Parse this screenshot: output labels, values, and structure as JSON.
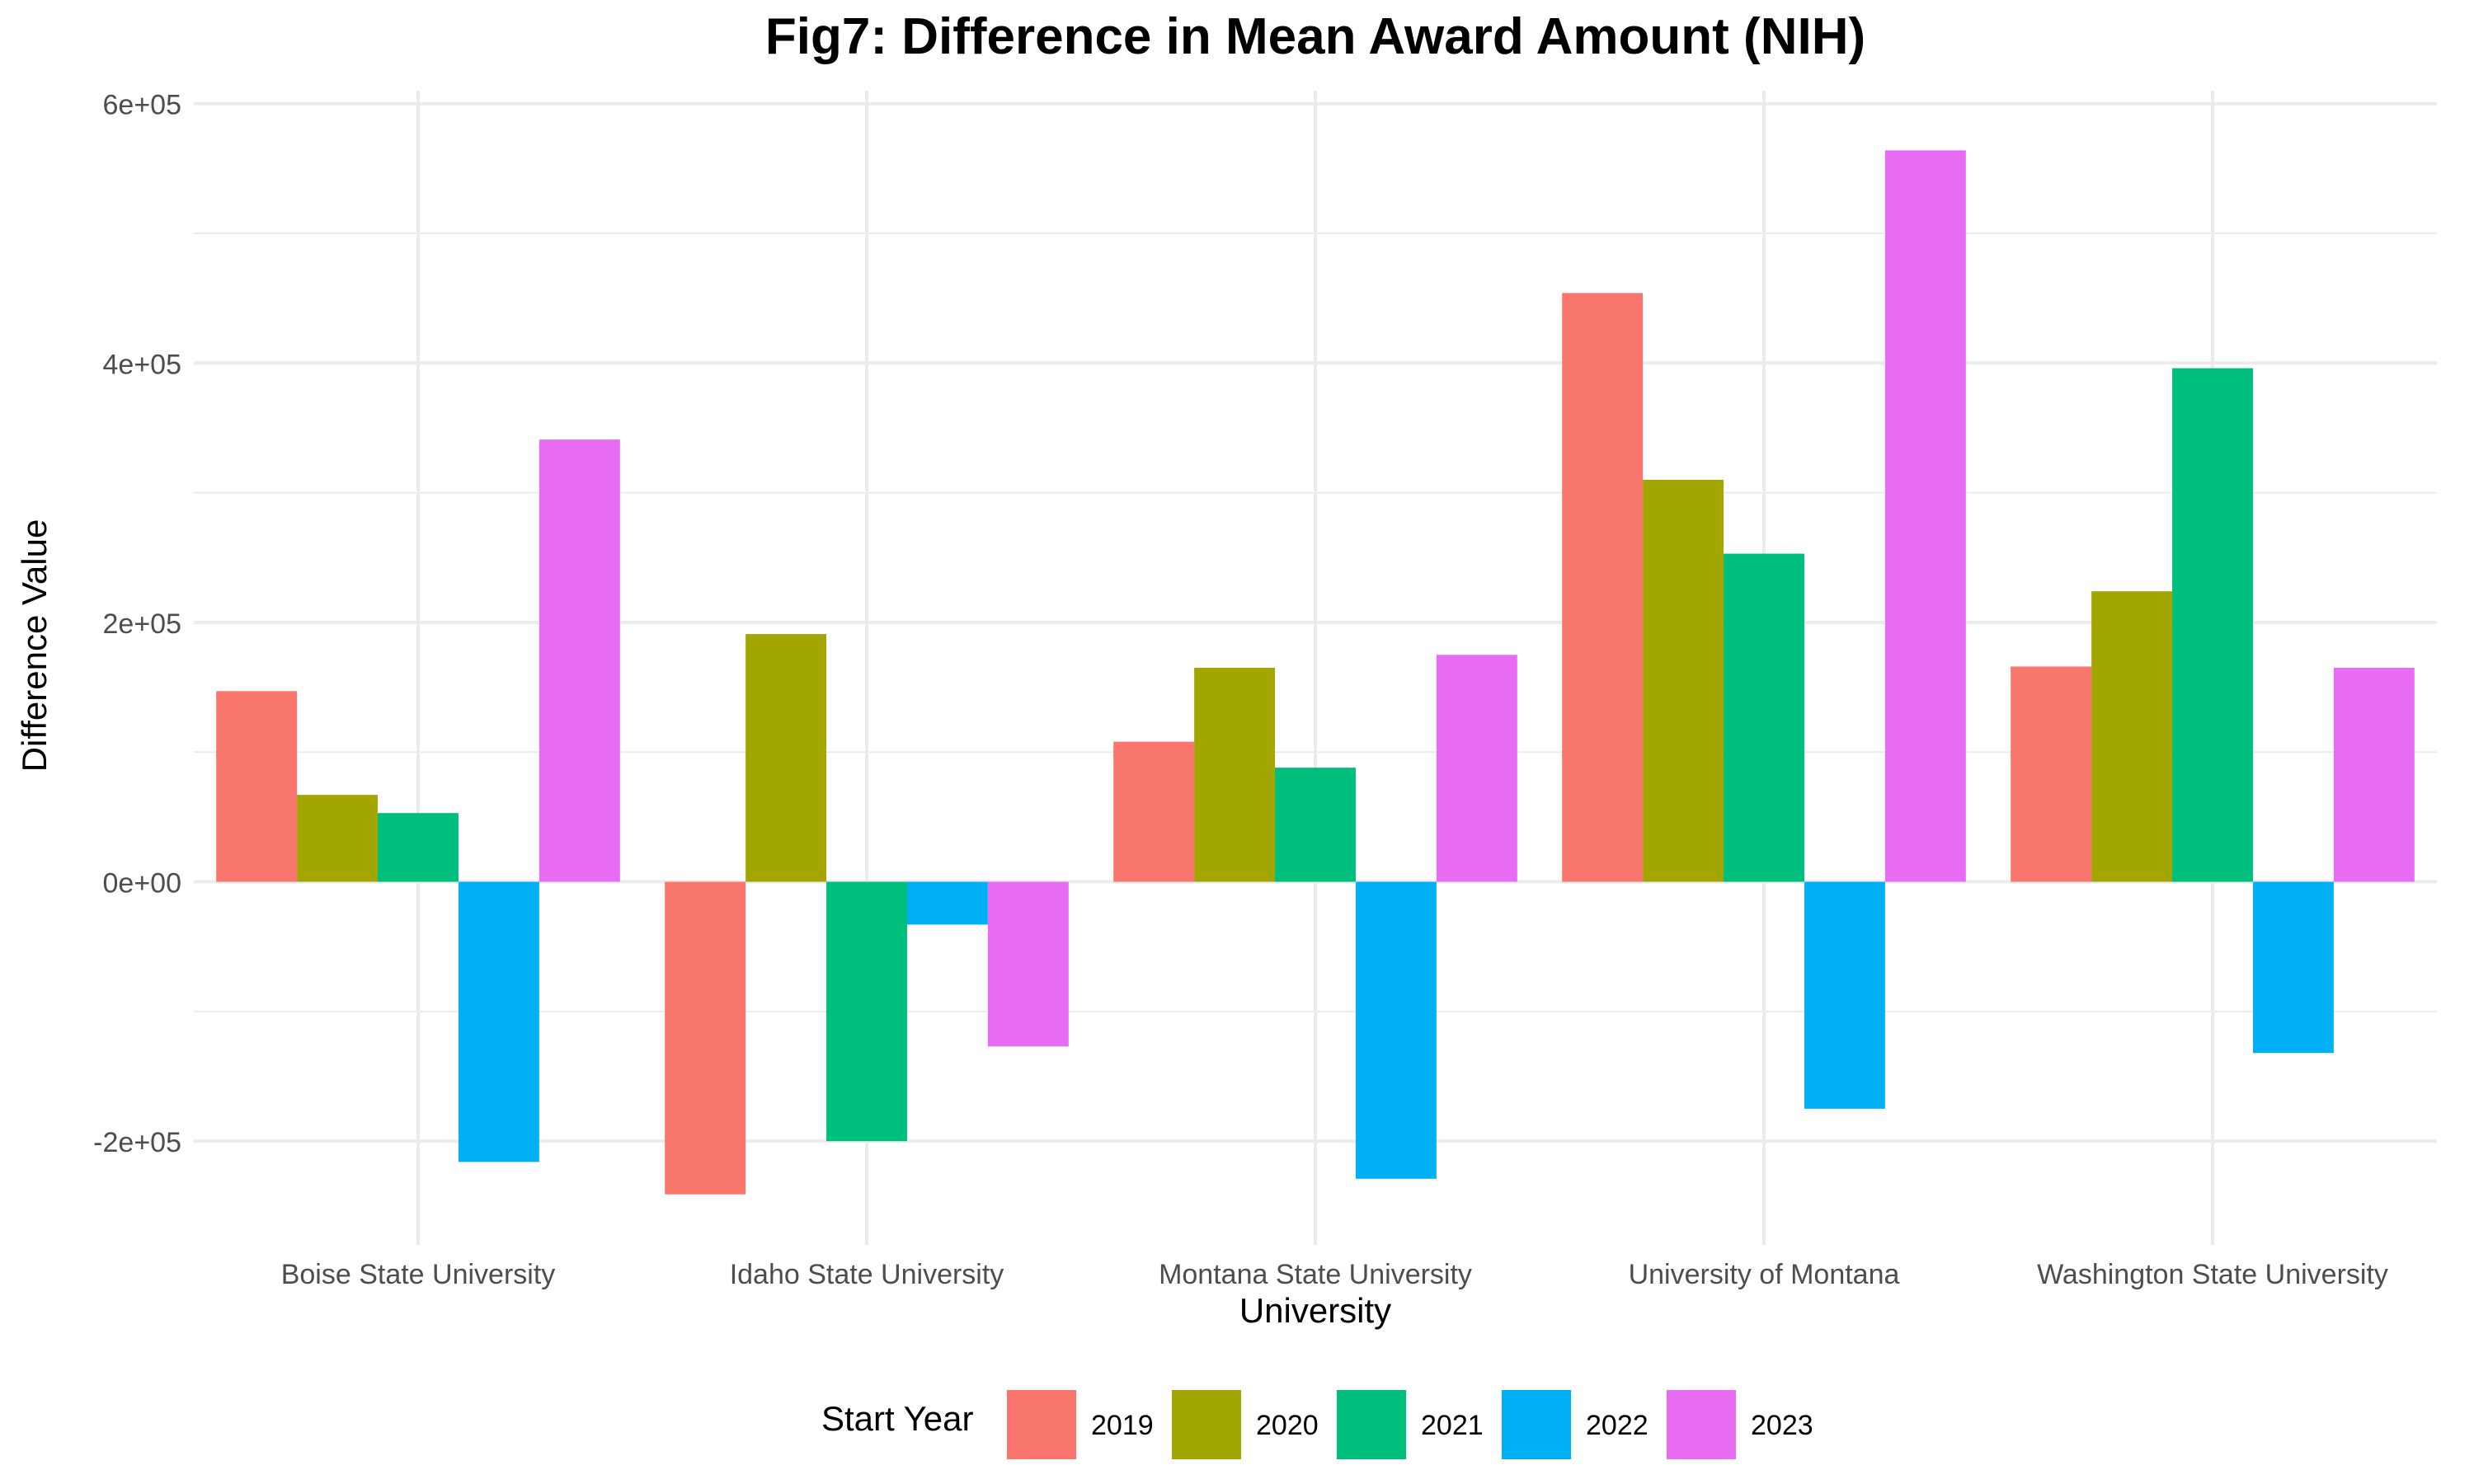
{
  "chart_data": {
    "type": "bar",
    "title": "Fig7: Difference in Mean Award Amount (NIH)",
    "xlabel": "University",
    "ylabel": "Difference Value",
    "categories": [
      "Boise State University",
      "Idaho State University",
      "Montana State University",
      "University of Montana",
      "Washington State University"
    ],
    "ylim": [
      -280000,
      610000
    ],
    "yticks": [
      -200000,
      0,
      200000,
      400000,
      600000
    ],
    "ytick_labels": [
      "-2e+05",
      "0e+00",
      "2e+05",
      "4e+05",
      "6e+05"
    ],
    "grid": true,
    "legend": {
      "title": "Start Year",
      "position": "bottom"
    },
    "series": [
      {
        "name": "2019",
        "color": "#F8766D",
        "values": [
          147000,
          -241000,
          108000,
          454000,
          166000
        ]
      },
      {
        "name": "2020",
        "color": "#A3A500",
        "values": [
          67000,
          191000,
          165000,
          310000,
          224000
        ]
      },
      {
        "name": "2021",
        "color": "#00BF7D",
        "values": [
          53000,
          -200000,
          88000,
          253000,
          396000
        ]
      },
      {
        "name": "2022",
        "color": "#00B0F6",
        "values": [
          -216000,
          -33000,
          -229000,
          -175000,
          -132000
        ]
      },
      {
        "name": "2023",
        "color": "#E76BF3",
        "values": [
          341000,
          -127000,
          175000,
          564000,
          165000
        ]
      }
    ]
  }
}
